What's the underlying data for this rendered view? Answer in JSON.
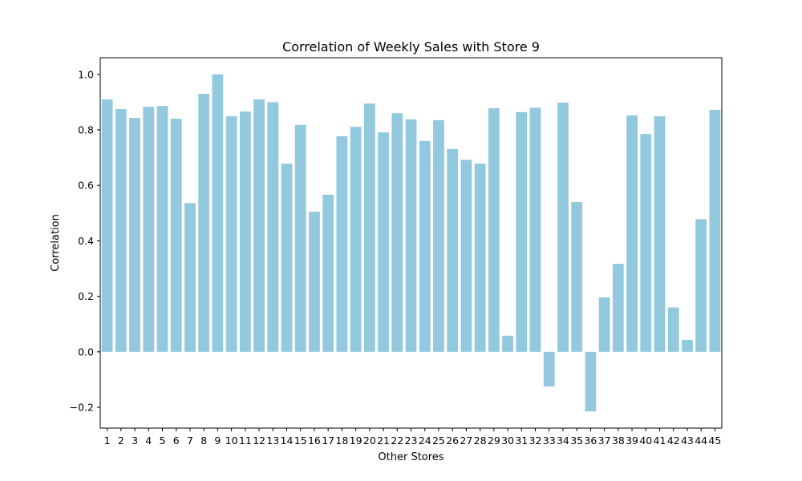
{
  "chart_data": {
    "type": "bar",
    "title": "Correlation of Weekly Sales with Store 9",
    "xlabel": "Other Stores",
    "ylabel": "Correlation",
    "categories": [
      "1",
      "2",
      "3",
      "4",
      "5",
      "6",
      "7",
      "8",
      "9",
      "10",
      "11",
      "12",
      "13",
      "14",
      "15",
      "16",
      "17",
      "18",
      "19",
      "20",
      "21",
      "22",
      "23",
      "24",
      "25",
      "26",
      "27",
      "28",
      "29",
      "30",
      "31",
      "32",
      "33",
      "34",
      "35",
      "36",
      "37",
      "38",
      "39",
      "40",
      "41",
      "42",
      "43",
      "44",
      "45"
    ],
    "values": [
      0.91,
      0.875,
      0.843,
      0.883,
      0.886,
      0.84,
      0.536,
      0.93,
      1.0,
      0.849,
      0.866,
      0.91,
      0.9,
      0.678,
      0.818,
      0.505,
      0.566,
      0.777,
      0.811,
      0.895,
      0.791,
      0.86,
      0.838,
      0.76,
      0.835,
      0.731,
      0.692,
      0.678,
      0.878,
      0.058,
      0.864,
      0.88,
      -0.125,
      0.898,
      0.54,
      -0.215,
      0.196,
      0.317,
      0.852,
      0.785,
      0.849,
      0.16,
      0.043,
      0.478,
      0.872
    ],
    "ylim": [
      -0.275,
      1.06
    ],
    "yticks": [
      -0.2,
      0.0,
      0.2,
      0.4,
      0.6,
      0.8,
      1.0
    ],
    "ytick_labels": [
      "−0.2",
      "0.0",
      "0.2",
      "0.4",
      "0.6",
      "0.8",
      "1.0"
    ],
    "bar_color": "#92c9de",
    "grid": false,
    "legend": "none"
  }
}
